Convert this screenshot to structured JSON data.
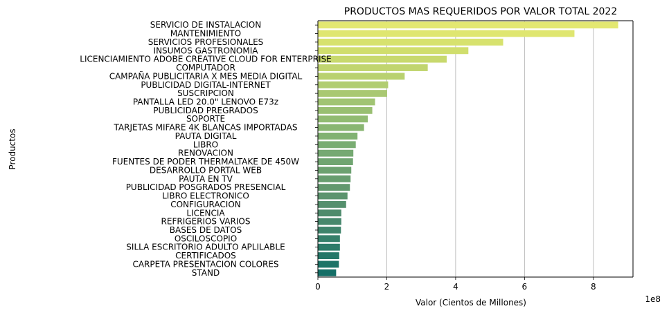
{
  "chart_data": {
    "type": "bar",
    "orientation": "horizontal",
    "title": "PRODUCTOS MAS REQUERIDOS POR VALOR TOTAL 2022",
    "xlabel": "Valor (Cientos de Millones)",
    "ylabel": "Productos",
    "x_offset_label": "1e8",
    "xlim": [
      0,
      9.15
    ],
    "xticks": [
      0,
      2,
      4,
      6,
      8
    ],
    "grid": "x",
    "categories": [
      "SERVICIO DE INSTALACION",
      "MANTENIMIENTO",
      "SERVICIOS PROFESIONALES",
      "INSUMOS GASTRONOMIA",
      "LICENCIAMIENTO ADOBE CREATIVE CLOUD FOR ENTERPRISE",
      "COMPUTADOR",
      "CAMPAÑA PUBLICITARIA X MES MEDIA DIGITAL",
      "PUBLICIDAD DIGITAL-INTERNET",
      "SUSCRIPCION",
      "PANTALLA LED 20.0\" LENOVO E73z",
      "PUBLICIDAD PREGRADOS",
      "SOPORTE",
      "TARJETAS MIFARE 4K BLANCAS IMPORTADAS",
      "PAUTA DIGITAL",
      "LIBRO",
      "RENOVACION",
      "FUENTES DE PODER THERMALTAKE DE 450W",
      "DESARROLLO PORTAL WEB",
      "PAUTA EN TV",
      "PUBLICIDAD POSGRADOS PRESENCIAL",
      "LIBRO ELECTRONICO",
      "CONFIGURACION",
      "LICENCIA",
      "REFRIGERIOS VARIOS",
      "BASES DE DATOS",
      "OSCILOSCOPIO",
      "SILLA ESCRITORIO ADULTO APLILABLE",
      "CERTIFICADOS",
      "CARPETA PRESENTACION COLORES",
      "STAND"
    ],
    "values": [
      8.72,
      7.45,
      5.38,
      4.37,
      3.74,
      3.19,
      2.52,
      2.04,
      2.01,
      1.66,
      1.58,
      1.45,
      1.34,
      1.15,
      1.1,
      1.03,
      1.02,
      0.97,
      0.95,
      0.93,
      0.86,
      0.82,
      0.68,
      0.68,
      0.67,
      0.64,
      0.64,
      0.62,
      0.61,
      0.53
    ],
    "colors": [
      "#e3e871",
      "#dfe670",
      "#d7e26e",
      "#d0de6d",
      "#c8d96e",
      "#c1d56f",
      "#b9d170",
      "#b1cd71",
      "#a9c872",
      "#a1c473",
      "#99bf72",
      "#91bb72",
      "#89b672",
      "#81b272",
      "#79ad72",
      "#75a972",
      "#70a571",
      "#6ca170",
      "#679d6f",
      "#62986e",
      "#5c946e",
      "#55906d",
      "#4e8b6c",
      "#46876c",
      "#3e836b",
      "#357f6a",
      "#2d7b69",
      "#257768",
      "#1c7367",
      "#146e66"
    ]
  }
}
